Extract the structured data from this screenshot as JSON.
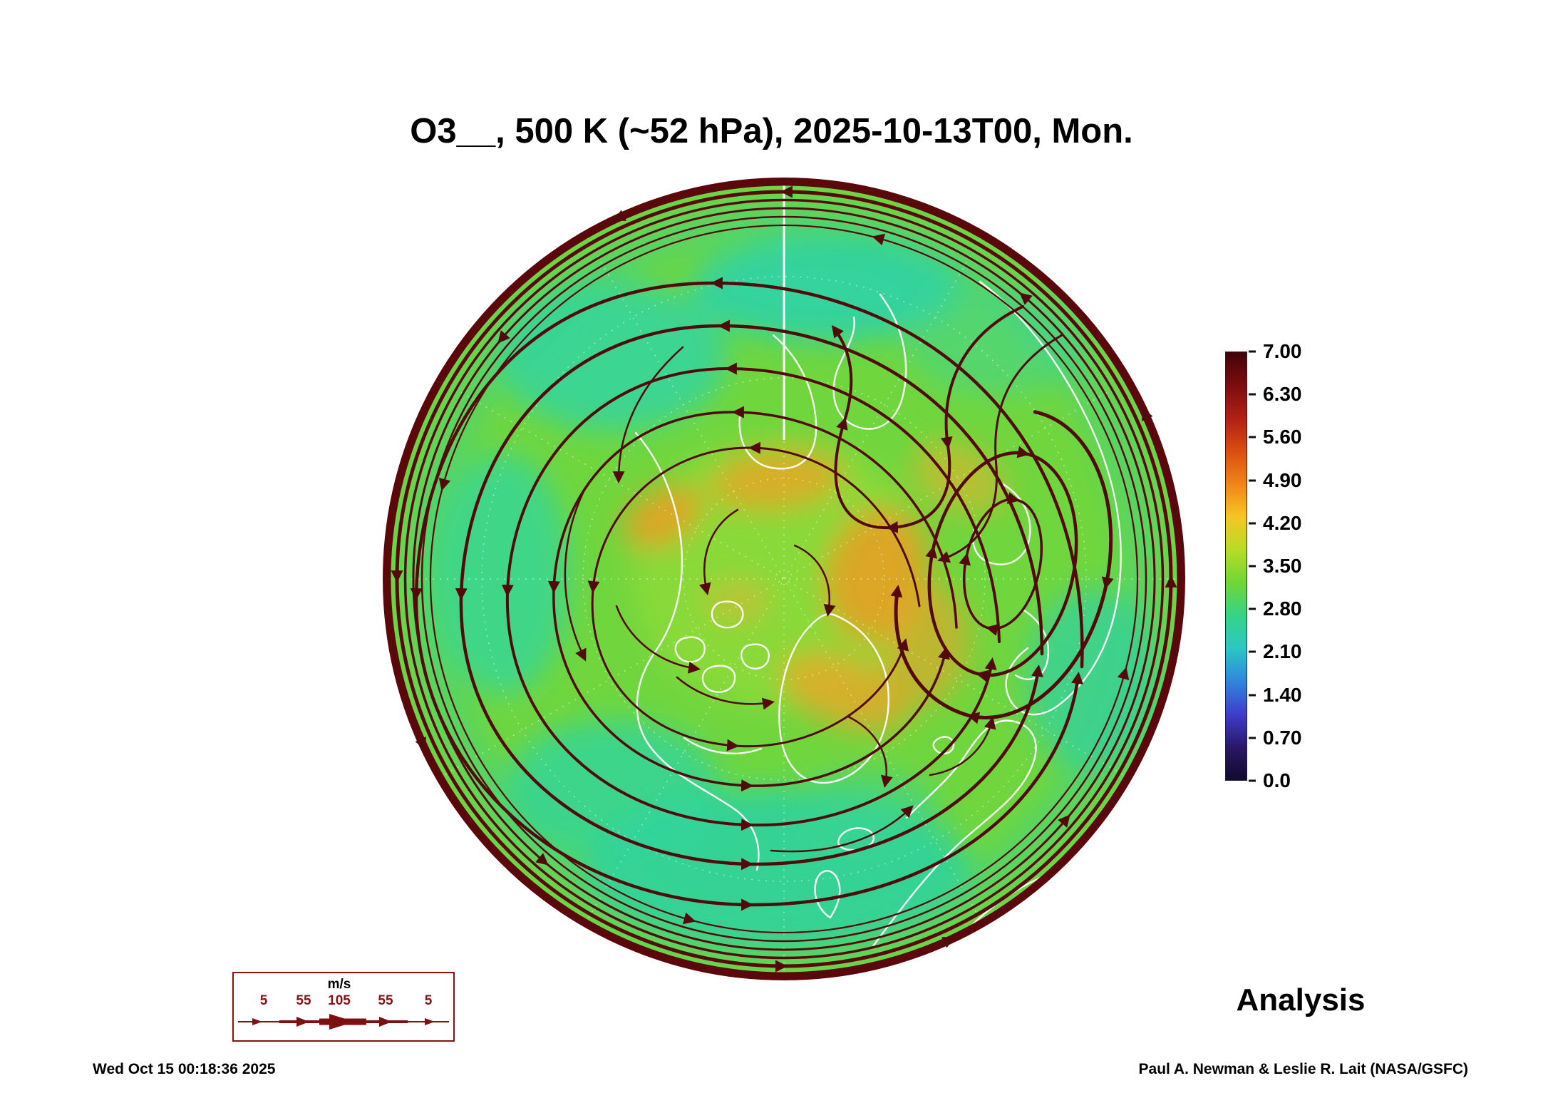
{
  "title": "O3__, 500 K (~52 hPa), 2025-10-13T00, Mon.",
  "colorbar": {
    "labels": [
      "7.00",
      "6.30",
      "5.60",
      "4.90",
      "4.20",
      "3.50",
      "2.80",
      "2.10",
      "1.40",
      "0.70",
      "0.0"
    ],
    "colors": [
      "#3f0409",
      "#7c0d10",
      "#b02014",
      "#d94e10",
      "#f08418",
      "#f5c623",
      "#b8dc26",
      "#6fd636",
      "#35d488",
      "#2bc7c4",
      "#2f86dd",
      "#3f3ecb",
      "#2a1767",
      "#120a2e"
    ]
  },
  "wind_legend": {
    "units": "m/s",
    "ticks": [
      "5",
      "55",
      "105",
      "55",
      "5"
    ]
  },
  "analysis_label": "Analysis",
  "generated_at": "Wed Oct 15 00:18:36 2025",
  "credit": "Paul A. Newman & Leslie R. Lait (NASA/GSFC)",
  "chart_data": {
    "type": "heatmap",
    "title": "O3__, 500 K (~52 hPa), 2025-10-13T00, Mon.",
    "projection": "north-polar-stereographic",
    "colorbar": {
      "ticks": [
        7.0,
        6.3,
        5.6,
        4.9,
        4.2,
        3.5,
        2.8,
        2.1,
        1.4,
        0.7,
        0.0
      ],
      "range": [
        0.0,
        7.0
      ]
    },
    "wind_speed_scale_ms": [
      5,
      55,
      105,
      55,
      5
    ],
    "overlays": [
      "streamlines",
      "coastlines",
      "graticule"
    ],
    "annotation": "Analysis",
    "field_description": "Dark-red ring of high ozone (~6.5-7.0) at the circular outer boundary; polar cap mostly green/teal (~2.8-4.2) with a broken ring of orange patches (~4.5-5.0) around the pole; large clockwise streamline loop (anticyclone) on the right side, counterclockwise circumpolar flow elsewhere"
  }
}
